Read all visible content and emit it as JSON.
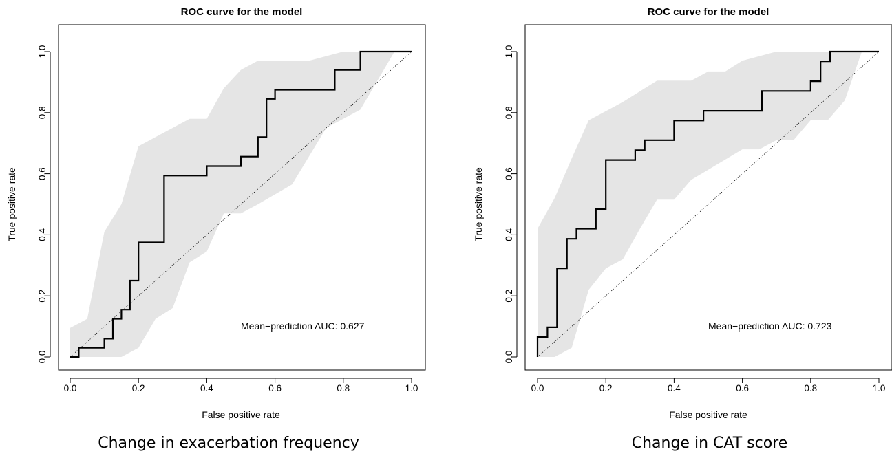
{
  "chart_data": [
    {
      "type": "line",
      "title": "ROC curve for the model",
      "xlabel": "False positive rate",
      "ylabel": "True positive rate",
      "xlim": [
        0,
        1
      ],
      "ylim": [
        0,
        1
      ],
      "xticks": [
        "0.0",
        "0.2",
        "0.4",
        "0.6",
        "0.8",
        "1.0"
      ],
      "yticks": [
        "0.0",
        "0.2",
        "0.4",
        "0.6",
        "0.8",
        "1.0"
      ],
      "annotation": "Mean−prediction AUC: 0.627",
      "caption": "Change in exacerbation frequency",
      "grid": false,
      "band_color": "#e5e5e5",
      "curve_color": "#000000",
      "roc": {
        "x": [
          0,
          0.025,
          0.025,
          0.1,
          0.1,
          0.125,
          0.125,
          0.15,
          0.15,
          0.175,
          0.175,
          0.2,
          0.2,
          0.275,
          0.275,
          0.4,
          0.4,
          0.5,
          0.5,
          0.55,
          0.55,
          0.575,
          0.575,
          0.6,
          0.6,
          0.775,
          0.775,
          0.85,
          0.85,
          1.0
        ],
        "y": [
          0,
          0,
          0.03,
          0.03,
          0.06,
          0.06,
          0.125,
          0.125,
          0.155,
          0.155,
          0.25,
          0.25,
          0.375,
          0.375,
          0.594,
          0.594,
          0.625,
          0.625,
          0.656,
          0.656,
          0.72,
          0.72,
          0.845,
          0.845,
          0.875,
          0.875,
          0.94,
          0.94,
          1.0,
          1.0
        ]
      },
      "band_upper": {
        "x": [
          0,
          0.05,
          0.1,
          0.15,
          0.2,
          0.35,
          0.4,
          0.45,
          0.5,
          0.55,
          0.7,
          0.8,
          1.0
        ],
        "y": [
          0.095,
          0.125,
          0.41,
          0.5,
          0.69,
          0.78,
          0.78,
          0.88,
          0.94,
          0.97,
          0.97,
          1.0,
          1.0
        ]
      },
      "band_lower": {
        "x": [
          0,
          0.05,
          0.15,
          0.2,
          0.25,
          0.3,
          0.35,
          0.4,
          0.45,
          0.5,
          0.55,
          0.65,
          0.75,
          0.85,
          0.95
        ],
        "y": [
          0,
          0,
          0,
          0.03,
          0.125,
          0.16,
          0.31,
          0.345,
          0.47,
          0.47,
          0.5,
          0.565,
          0.75,
          0.81,
          1.0
        ]
      }
    },
    {
      "type": "line",
      "title": "ROC curve for the model",
      "xlabel": "False positive rate",
      "ylabel": "True positive rate",
      "xlim": [
        0,
        1
      ],
      "ylim": [
        0,
        1
      ],
      "xticks": [
        "0.0",
        "0.2",
        "0.4",
        "0.6",
        "0.8",
        "1.0"
      ],
      "yticks": [
        "0.0",
        "0.2",
        "0.4",
        "0.6",
        "0.8",
        "1.0"
      ],
      "annotation": "Mean−prediction AUC: 0.723",
      "caption": "Change in CAT score",
      "grid": false,
      "band_color": "#e5e5e5",
      "curve_color": "#000000",
      "roc": {
        "x": [
          0,
          0,
          0.029,
          0.029,
          0.057,
          0.057,
          0.086,
          0.086,
          0.114,
          0.114,
          0.171,
          0.171,
          0.2,
          0.2,
          0.286,
          0.286,
          0.314,
          0.314,
          0.4,
          0.4,
          0.486,
          0.486,
          0.657,
          0.657,
          0.8,
          0.8,
          0.829,
          0.829,
          0.857,
          0.857,
          1.0
        ],
        "y": [
          0,
          0.065,
          0.065,
          0.097,
          0.097,
          0.29,
          0.29,
          0.387,
          0.387,
          0.42,
          0.42,
          0.484,
          0.484,
          0.645,
          0.645,
          0.677,
          0.677,
          0.71,
          0.71,
          0.774,
          0.774,
          0.806,
          0.806,
          0.871,
          0.871,
          0.903,
          0.903,
          0.968,
          0.968,
          1.0,
          1.0
        ]
      },
      "band_upper": {
        "x": [
          0,
          0.05,
          0.1,
          0.15,
          0.2,
          0.25,
          0.35,
          0.45,
          0.5,
          0.55,
          0.6,
          0.7,
          0.85,
          0.95
        ],
        "y": [
          0.42,
          0.52,
          0.65,
          0.775,
          0.805,
          0.835,
          0.905,
          0.905,
          0.935,
          0.935,
          0.97,
          1.0,
          1.0,
          1.0
        ]
      },
      "band_lower": {
        "x": [
          0,
          0.05,
          0.1,
          0.15,
          0.2,
          0.25,
          0.3,
          0.35,
          0.4,
          0.45,
          0.6,
          0.65,
          0.7,
          0.75,
          0.8,
          0.85,
          0.9,
          0.95
        ],
        "y": [
          0,
          0,
          0.03,
          0.22,
          0.29,
          0.32,
          0.42,
          0.515,
          0.515,
          0.58,
          0.68,
          0.68,
          0.71,
          0.71,
          0.775,
          0.775,
          0.84,
          1.0
        ]
      }
    }
  ]
}
